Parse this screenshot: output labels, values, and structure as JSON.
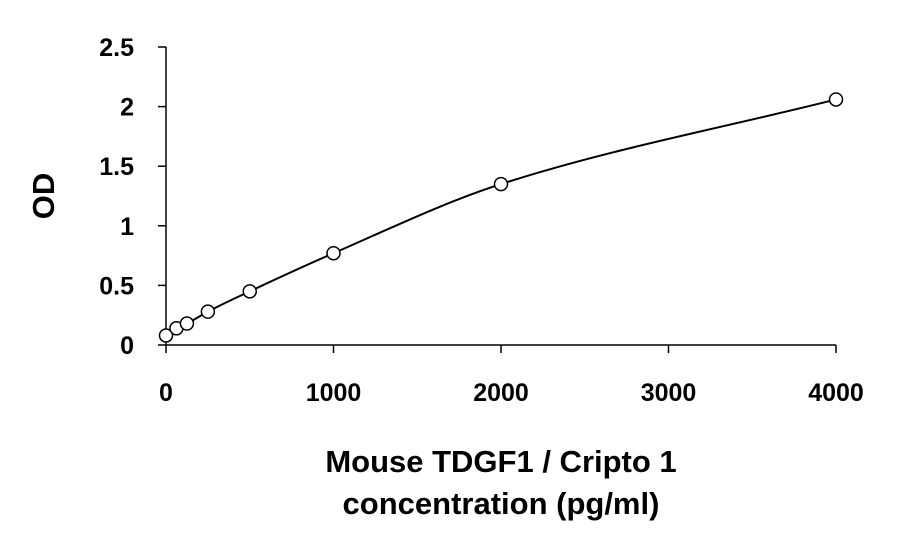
{
  "chart_data": {
    "type": "scatter",
    "title": "",
    "xlabel_lines": [
      "Mouse TDGF1 / Cripto 1",
      "concentration (pg/ml)"
    ],
    "ylabel": "OD",
    "xlim": [
      0,
      4000
    ],
    "ylim": [
      0,
      2.5
    ],
    "xticks": [
      0,
      1000,
      2000,
      3000,
      4000
    ],
    "xtick_labels": [
      "0",
      "1000",
      "2000",
      "3000",
      "4000"
    ],
    "yticks": [
      0,
      0.5,
      1,
      1.5,
      2,
      2.5
    ],
    "ytick_labels": [
      "0",
      "0.5",
      "1",
      "1.5",
      "2",
      "2.5"
    ],
    "grid": false,
    "fit_curve": true,
    "series": [
      {
        "points": [
          {
            "x": 0,
            "y": 0.08
          },
          {
            "x": 62.5,
            "y": 0.14
          },
          {
            "x": 125,
            "y": 0.18
          },
          {
            "x": 250,
            "y": 0.28
          },
          {
            "x": 500,
            "y": 0.45
          },
          {
            "x": 1000,
            "y": 0.77
          },
          {
            "x": 2000,
            "y": 1.35
          },
          {
            "x": 4000,
            "y": 2.06
          }
        ]
      }
    ]
  }
}
